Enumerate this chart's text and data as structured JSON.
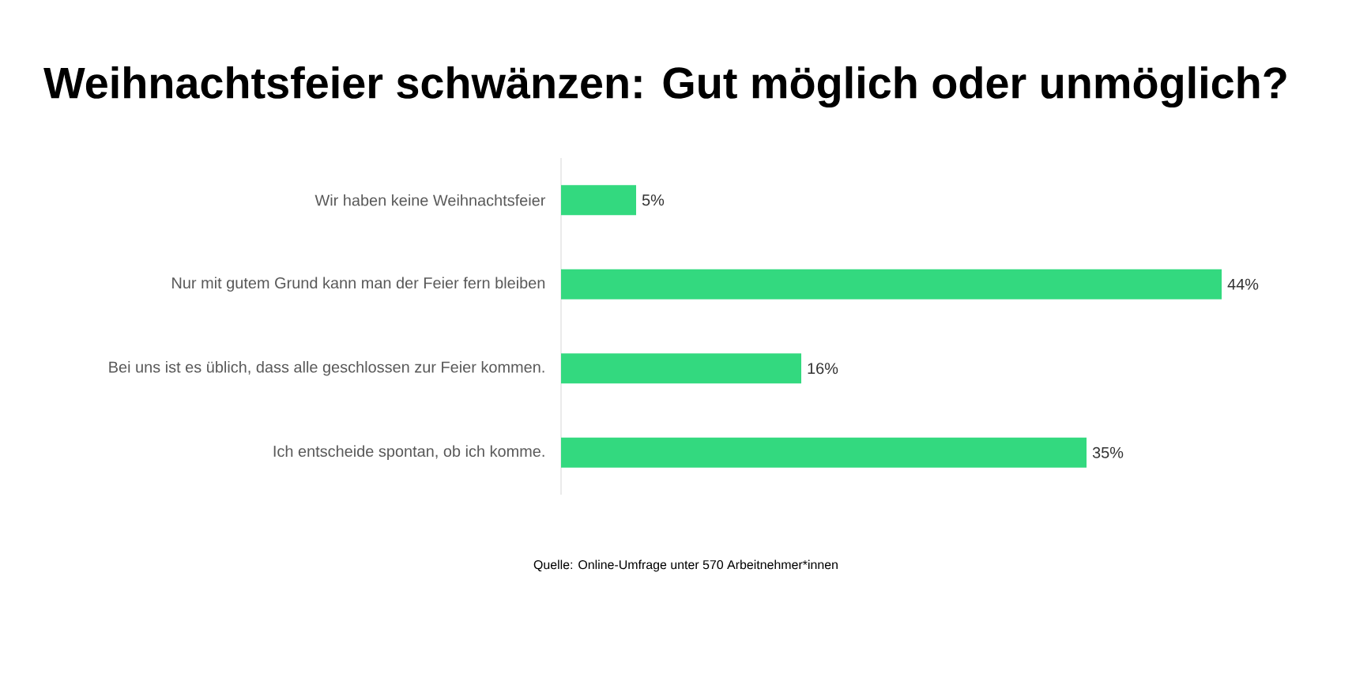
{
  "chart_data": {
    "type": "bar",
    "orientation": "horizontal",
    "title": "Weihnachtsfeier schwänzen: Gut möglich oder unmöglich?",
    "categories": [
      "Wir haben keine Weihnachtsfeier",
      "Nur mit gutem Grund kann man der Feier fern bleiben",
      "Bei uns ist es üblich, dass alle geschlossen zur Feier kommen.",
      "Ich entscheide spontan, ob ich komme."
    ],
    "values": [
      5,
      44,
      16,
      35
    ],
    "value_labels": [
      "5%",
      "44%",
      "16%",
      "35%"
    ],
    "color": "#33d97f",
    "tick_labels": "y",
    "annotations": [
      "Quelle: Online-Umfrage unter 570 Arbeitnehmer*innen"
    ]
  }
}
